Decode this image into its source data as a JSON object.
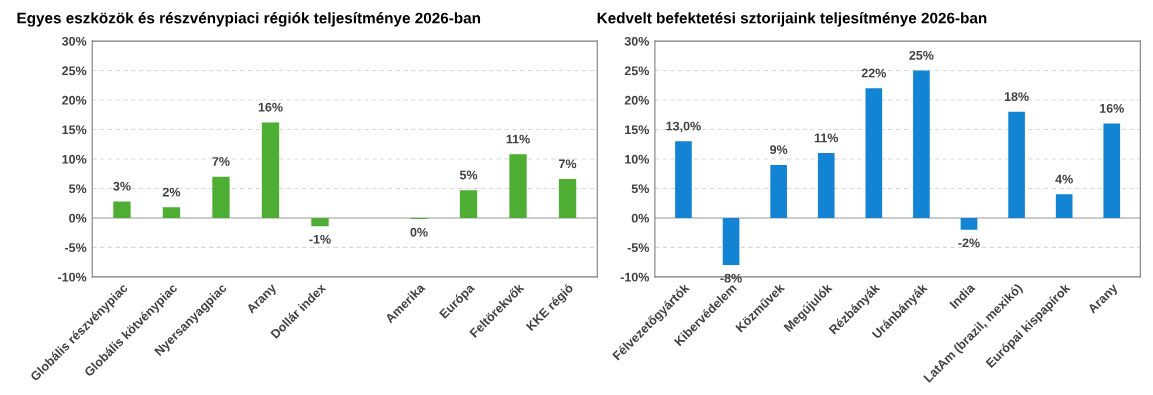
{
  "chart_data": [
    {
      "type": "bar",
      "title": "Egyes eszközök és részvénypiaci régiók teljesítménye 2026-ban",
      "categories": [
        "Globális részvénypiac",
        "Globális kötvénypiac",
        "Nyersanyagpiac",
        "Arany",
        "Dollár index",
        null,
        "Amerika",
        "Európa",
        "Feltörekvők",
        "KKE régió"
      ],
      "values": [
        2.8,
        1.8,
        7.0,
        16.2,
        -1.4,
        null,
        -0.2,
        4.7,
        10.8,
        6.6
      ],
      "value_labels": [
        "3%",
        "2%",
        "7%",
        "16%",
        "-1%",
        null,
        "0%",
        "5%",
        "11%",
        "7%"
      ],
      "color": "#4ead33",
      "ylim": [
        -10,
        30
      ],
      "yticks": [
        {
          "value": -10,
          "label": "-10%"
        },
        {
          "value": -5,
          "label": "-5%"
        },
        {
          "value": 0,
          "label": "0%"
        },
        {
          "value": 5,
          "label": "5%"
        },
        {
          "value": 10,
          "label": "10%"
        },
        {
          "value": 15,
          "label": "15%"
        },
        {
          "value": 20,
          "label": "20%"
        },
        {
          "value": 25,
          "label": "25%"
        },
        {
          "value": 30,
          "label": "30%"
        }
      ],
      "grid": "y",
      "line_style": "dashed"
    },
    {
      "type": "bar",
      "title": "Kedvelt befektetési sztorijaink teljesítménye 2026-ban",
      "categories": [
        "Félvezetőgyártók",
        "Kibervédelem",
        "Közművek",
        "Megújulók",
        "Rézbányák",
        "Uránbányák",
        "India",
        "LatAm (brazil, mexikó)",
        "Európai kispapírok",
        "Arany"
      ],
      "values": [
        13.0,
        -8,
        9,
        11,
        22,
        25,
        -2,
        18,
        4,
        16
      ],
      "value_labels": [
        "13,0%",
        "-8%",
        "9%",
        "11%",
        "22%",
        "25%",
        "-2%",
        "18%",
        "4%",
        "16%"
      ],
      "color": "#1284d3",
      "ylim": [
        -10,
        30
      ],
      "yticks": [
        {
          "value": -10,
          "label": "-10%"
        },
        {
          "value": -5,
          "label": "-5%"
        },
        {
          "value": 0,
          "label": "0%"
        },
        {
          "value": 5,
          "label": "5%"
        },
        {
          "value": 10,
          "label": "10%"
        },
        {
          "value": 15,
          "label": "15%"
        },
        {
          "value": 20,
          "label": "20%"
        },
        {
          "value": 25,
          "label": "25%"
        },
        {
          "value": 30,
          "label": "30%"
        }
      ],
      "grid": "y",
      "line_style": "dashed"
    }
  ]
}
